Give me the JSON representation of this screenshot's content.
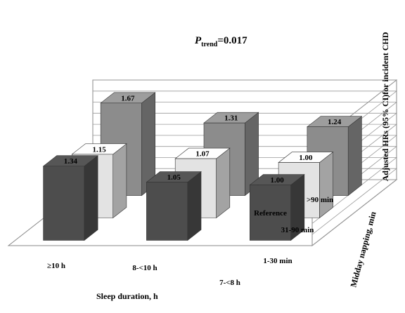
{
  "chart_data": {
    "type": "bar",
    "title": "",
    "annotation": {
      "p_symbol": "P",
      "p_subscript": "trend",
      "p_value": "=0.017"
    },
    "xlabel": "Sleep duration, h",
    "zlabel": "Midday napping, min",
    "ylabel": "Adjusted HRs (95% CI)for incident CHD",
    "ylim": [
      0,
      1.8
    ],
    "yticks": [
      "0.00",
      "0.20",
      "0.40",
      "0.60",
      "0.80",
      "1.00",
      "1.20",
      "1.40",
      "1.60",
      "1.80"
    ],
    "categories": [
      "≥10 h",
      "8-<10 h",
      "7-<8 h"
    ],
    "series": [
      {
        "name": "1-30 min",
        "values": [
          1.34,
          1.05,
          1.0
        ],
        "labels": [
          "1.34",
          "1.05",
          "1.00"
        ],
        "color": "#4d4d4d"
      },
      {
        "name": "31-90 min",
        "values": [
          1.15,
          1.07,
          1.0
        ],
        "labels": [
          "1.15",
          "1.07",
          "1.00"
        ],
        "color": "#e3e3e3"
      },
      {
        "name": ">90 min",
        "values": [
          1.67,
          1.31,
          1.24
        ],
        "labels": [
          "1.67",
          "1.31",
          "1.24"
        ],
        "color": "#8c8c8c"
      }
    ],
    "reference_label": "Reference",
    "grid": true
  }
}
